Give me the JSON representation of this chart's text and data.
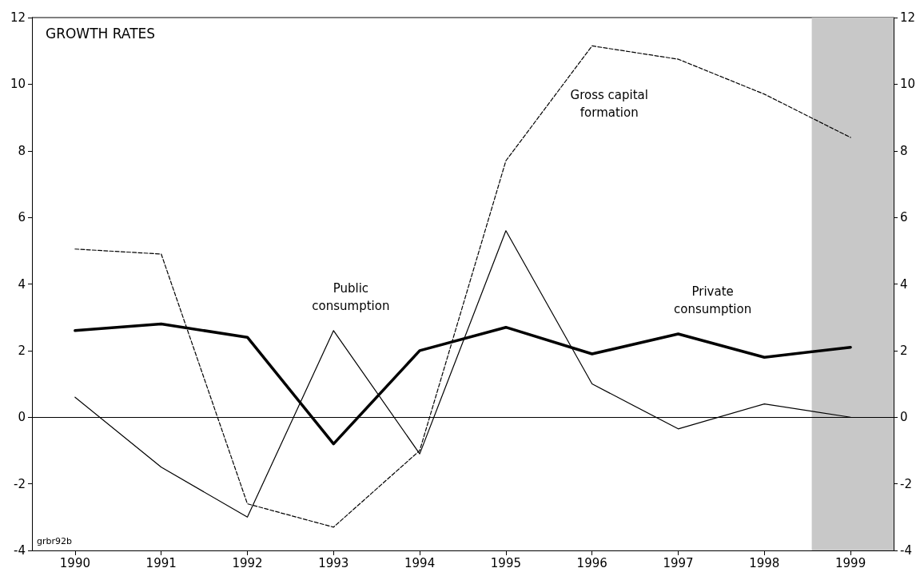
{
  "chart_data": {
    "type": "line",
    "title": "GROWTH RATES",
    "x": [
      1990,
      1991,
      1992,
      1993,
      1994,
      1995,
      1996,
      1997,
      1998,
      1999
    ],
    "series": [
      {
        "name": "Gross capital formation",
        "color": "#000000",
        "line_style": "dashed",
        "values": [
          5.05,
          4.9,
          -2.6,
          -3.3,
          -1.0,
          7.7,
          11.15,
          10.75,
          9.7,
          8.4
        ]
      },
      {
        "name": "Public consumption",
        "color": "#000000",
        "line_style": "solid",
        "values": [
          0.6,
          -1.5,
          -3.0,
          2.6,
          -1.1,
          5.6,
          1.0,
          -0.35,
          0.4,
          0.0
        ]
      },
      {
        "name": "Private consumption",
        "color": "#000000",
        "line_style": "solid",
        "values": [
          2.6,
          2.8,
          2.4,
          -0.8,
          2.0,
          2.7,
          1.9,
          2.5,
          1.8,
          2.1
        ]
      }
    ],
    "xlim": [
      1989.5,
      1999.5
    ],
    "xticks": [
      1990,
      1991,
      1992,
      1993,
      1994,
      1995,
      1996,
      1997,
      1998,
      1999
    ],
    "ylim": [
      -4,
      12
    ],
    "yticks": [
      -4,
      -2,
      0,
      2,
      4,
      6,
      8,
      10,
      12
    ],
    "y2lim": [
      -4,
      12
    ],
    "y2ticks": [
      -4,
      -2,
      0,
      2,
      4,
      6,
      8,
      10,
      12
    ],
    "ref_lines": [
      {
        "axis": "y",
        "value": 0,
        "color": "#000000",
        "line_style": "solid"
      }
    ],
    "bands": [
      {
        "axis": "x",
        "from": 1998.55,
        "to": 1999.5,
        "color": "#c8c8c8"
      }
    ],
    "annotations": [
      "grbr92b"
    ],
    "grid": false,
    "legend": false,
    "marker": "none"
  }
}
